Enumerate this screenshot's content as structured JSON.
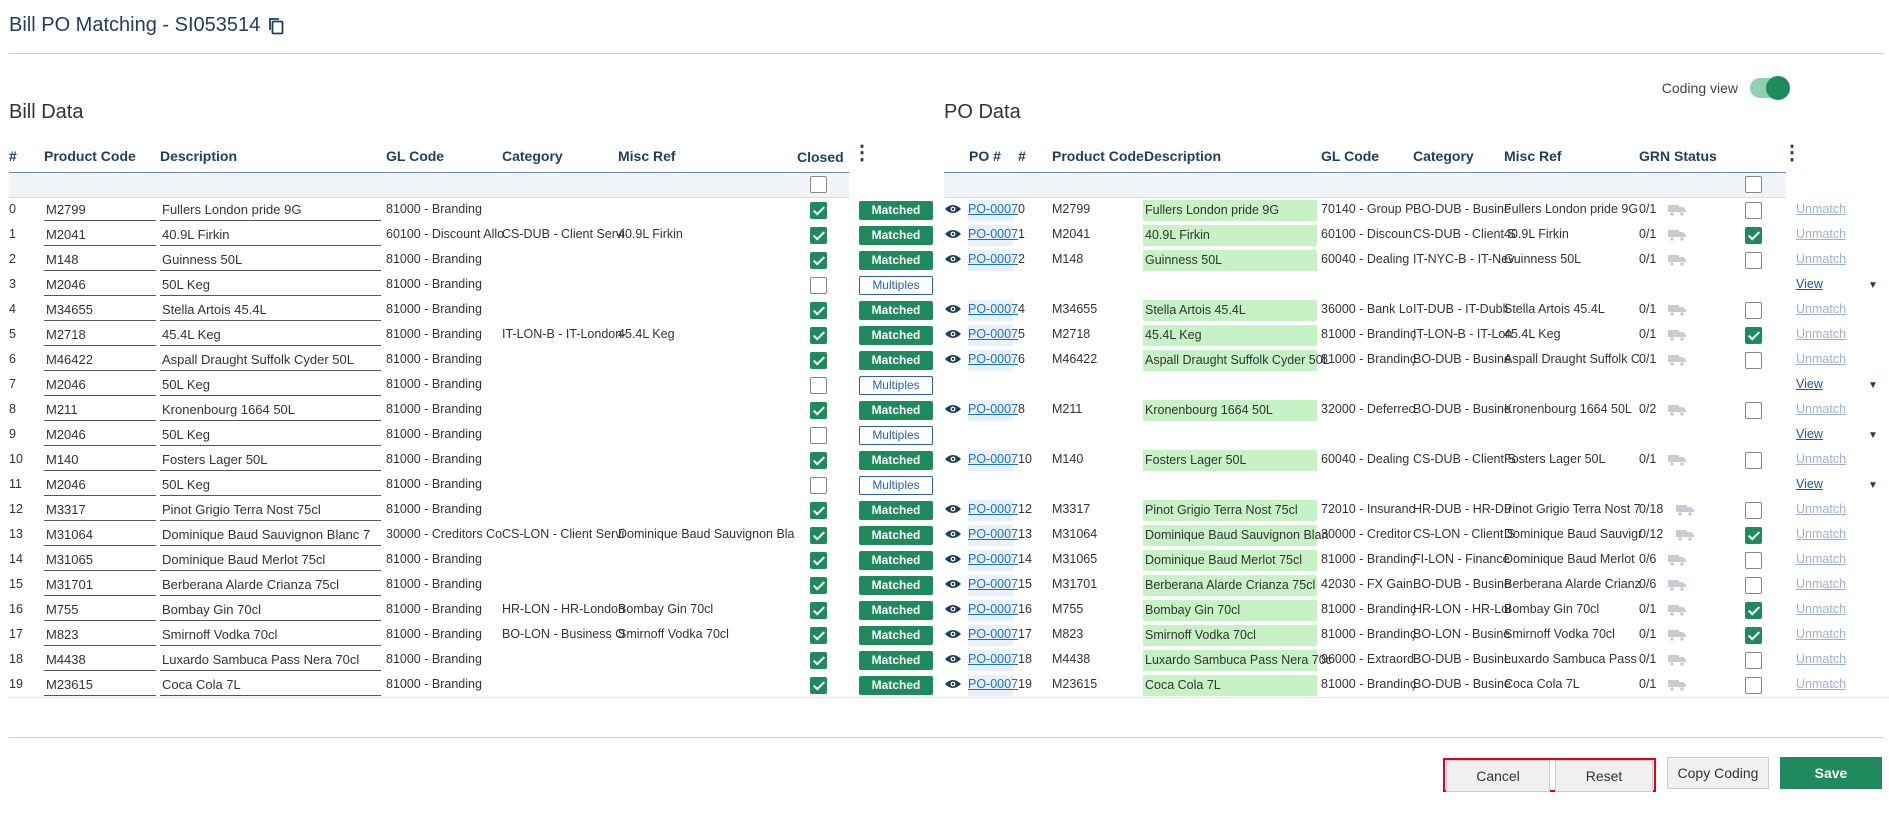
{
  "page": {
    "title": "Bill PO Matching - SI053514",
    "bill_section": "Bill Data",
    "po_section": "PO Data",
    "coding_view_label": "Coding view"
  },
  "bill_headers": {
    "num": "#",
    "product_code": "Product Code",
    "description": "Description",
    "gl_code": "GL Code",
    "category": "Category",
    "misc_ref": "Misc Ref",
    "closed": "Closed"
  },
  "po_headers": {
    "po": "PO #",
    "num": "#",
    "product_code": "Product Code",
    "description": "Description",
    "gl_code": "GL Code",
    "category": "Category",
    "misc_ref": "Misc Ref",
    "grn_status": "GRN Status"
  },
  "rows": [
    {
      "n": "0",
      "code": "M2799",
      "desc": "Fullers London pride 9G",
      "gl": "81000 - Branding",
      "cat": "",
      "misc": "",
      "closed": true,
      "status": "Matched",
      "po": "PO-0007",
      "pcode": "M2799",
      "pdesc": "Fullers London pride 9G",
      "pgl": "70140 - Group P",
      "pcat": "BO-DUB - Busine",
      "pmisc": "Fullers London pride 9G",
      "grn": "0/1",
      "pchk": false
    },
    {
      "n": "1",
      "code": "M2041",
      "desc": "40.9L Firkin",
      "gl": "60100 - Discount Allo",
      "cat": "CS-DUB - Client Servi",
      "misc": "40.9L Firkin",
      "closed": true,
      "status": "Matched",
      "po": "PO-0007",
      "pcode": "M2041",
      "pdesc": "40.9L Firkin",
      "pgl": "60100 - Discoun",
      "pcat": "CS-DUB - Client S",
      "pmisc": "40.9L Firkin",
      "grn": "0/1",
      "pchk": true
    },
    {
      "n": "2",
      "code": "M148",
      "desc": "Guinness  50L",
      "gl": "81000 - Branding",
      "cat": "",
      "misc": "",
      "closed": true,
      "status": "Matched",
      "po": "PO-0007",
      "pcode": "M148",
      "pdesc": "Guinness 50L",
      "pgl": "60040 - Dealing",
      "pcat": "IT-NYC-B - IT-Nev",
      "pmisc": "Guinness 50L",
      "grn": "0/1",
      "pchk": false
    },
    {
      "n": "3",
      "code": "M2046",
      "desc": "50L Keg",
      "gl": "81000 - Branding",
      "cat": "",
      "misc": "",
      "closed": false,
      "status": "Multiples",
      "view": "View"
    },
    {
      "n": "4",
      "code": "M34655",
      "desc": "Stella Artois  45.4L",
      "gl": "81000 - Branding",
      "cat": "",
      "misc": "",
      "closed": true,
      "status": "Matched",
      "po": "PO-0007",
      "pcode": "M34655",
      "pdesc": "Stella Artois 45.4L",
      "pgl": "36000 - Bank Lo",
      "pcat": "IT-DUB - IT-Dubli",
      "pmisc": "Stella Artois 45.4L",
      "grn": "0/1",
      "pchk": false
    },
    {
      "n": "5",
      "code": "M2718",
      "desc": "45.4L Keg",
      "gl": "81000 - Branding",
      "cat": "IT-LON-B - IT-London-",
      "misc": "45.4L Keg",
      "closed": true,
      "status": "Matched",
      "po": "PO-0007",
      "pcode": "M2718",
      "pdesc": "45.4L Keg",
      "pgl": "81000 - Brandinç",
      "pcat": "IT-LON-B - IT-Lon",
      "pmisc": "45.4L Keg",
      "grn": "0/1",
      "pchk": true
    },
    {
      "n": "6",
      "code": "M46422",
      "desc": "Aspall Draught Suffolk Cyder 50L",
      "gl": "81000 - Branding",
      "cat": "",
      "misc": "",
      "closed": true,
      "status": "Matched",
      "po": "PO-0007",
      "pcode": "M46422",
      "pdesc": "Aspall Draught Suffolk Cyder 50L",
      "pgl": "81000 - Brandinç",
      "pcat": "BO-DUB - Busine",
      "pmisc": "Aspall Draught Suffolk C",
      "grn": "0/1",
      "pchk": false
    },
    {
      "n": "7",
      "code": "M2046",
      "desc": "50L Keg",
      "gl": "81000 - Branding",
      "cat": "",
      "misc": "",
      "closed": false,
      "status": "Multiples",
      "view": "View"
    },
    {
      "n": "8",
      "code": "M211",
      "desc": "Kronenbourg 1664  50L",
      "gl": "81000 - Branding",
      "cat": "",
      "misc": "",
      "closed": true,
      "status": "Matched",
      "po": "PO-0007",
      "pcode": "M211",
      "pdesc": "Kronenbourg 1664 50L",
      "pgl": "32000 - Deferrec",
      "pcat": "BO-DUB - Busine",
      "pmisc": "Kronenbourg 1664 50L",
      "grn": "0/2",
      "pchk": false
    },
    {
      "n": "9",
      "code": "M2046",
      "desc": "50L Keg",
      "gl": "81000 - Branding",
      "cat": "",
      "misc": "",
      "closed": false,
      "status": "Multiples",
      "view": "View"
    },
    {
      "n": "10",
      "code": "M140",
      "desc": "Fosters Lager  50L",
      "gl": "81000 - Branding",
      "cat": "",
      "misc": "",
      "closed": true,
      "status": "Matched",
      "po": "PO-0007",
      "pcode": "M140",
      "pdesc": "Fosters Lager 50L",
      "pgl": "60040 - Dealing",
      "pcat": "CS-DUB - Client S",
      "pmisc": "Fosters Lager 50L",
      "grn": "0/1",
      "pchk": false
    },
    {
      "n": "11",
      "code": "M2046",
      "desc": "50L Keg",
      "gl": "81000 - Branding",
      "cat": "",
      "misc": "",
      "closed": false,
      "status": "Multiples",
      "view": "View"
    },
    {
      "n": "12",
      "code": "M3317",
      "desc": "Pinot Grigio Terra Nost  75cl",
      "gl": "81000 - Branding",
      "cat": "",
      "misc": "",
      "closed": true,
      "status": "Matched",
      "po": "PO-0007",
      "pcode": "M3317",
      "pdesc": "Pinot Grigio Terra Nost 75cl",
      "pgl": "72010 - Insuranc",
      "pcat": "HR-DUB - HR-Du",
      "pmisc": "Pinot Grigio Terra Nost 7",
      "grn": "0/18",
      "pchk": false
    },
    {
      "n": "13",
      "code": "M31064",
      "desc": "Dominique Baud Sauvignon Blanc  7",
      "gl": "30000 - Creditors Co",
      "cat": "CS-LON - Client Servi",
      "misc": "Dominique Baud Sauvignon Bla",
      "closed": true,
      "status": "Matched",
      "po": "PO-0007",
      "pcode": "M31064",
      "pdesc": "Dominique Baud Sauvignon Blan",
      "pgl": "30000 - Creditor",
      "pcat": "CS-LON - Client S",
      "pmisc": "Dominique Baud Sauvigr",
      "grn": "0/12",
      "pchk": true
    },
    {
      "n": "14",
      "code": "M31065",
      "desc": "Dominique Baud Merlot  75cl",
      "gl": "81000 - Branding",
      "cat": "",
      "misc": "",
      "closed": true,
      "status": "Matched",
      "po": "PO-0007",
      "pcode": "M31065",
      "pdesc": "Dominique Baud Merlot 75cl",
      "pgl": "81000 - Brandinç",
      "pcat": "FI-LON - Finance",
      "pmisc": "Dominique Baud Merlot",
      "grn": "0/6",
      "pchk": false
    },
    {
      "n": "15",
      "code": "M31701",
      "desc": "Berberana Alarde Crianza  75cl",
      "gl": "81000 - Branding",
      "cat": "",
      "misc": "",
      "closed": true,
      "status": "Matched",
      "po": "PO-0007",
      "pcode": "M31701",
      "pdesc": "Berberana Alarde Crianza 75cl",
      "pgl": "42030 - FX Gain:",
      "pcat": "BO-DUB - Busine",
      "pmisc": "Berberana Alarde Crianz",
      "grn": "0/6",
      "pchk": false
    },
    {
      "n": "16",
      "code": "M755",
      "desc": "Bombay Gin  70cl",
      "gl": "81000 - Branding",
      "cat": "HR-LON - HR-London",
      "misc": "Bombay Gin 70cl",
      "closed": true,
      "status": "Matched",
      "po": "PO-0007",
      "pcode": "M755",
      "pdesc": "Bombay Gin 70cl",
      "pgl": "81000 - Brandinç",
      "pcat": "HR-LON - HR-Loi",
      "pmisc": "Bombay Gin 70cl",
      "grn": "0/1",
      "pchk": true
    },
    {
      "n": "17",
      "code": "M823",
      "desc": "Smirnoff Vodka  70cl",
      "gl": "81000 - Branding",
      "cat": "BO-LON - Business O",
      "misc": "Smirnoff Vodka 70cl",
      "closed": true,
      "status": "Matched",
      "po": "PO-0007",
      "pcode": "M823",
      "pdesc": "Smirnoff Vodka 70cl",
      "pgl": "81000 - Brandinç",
      "pcat": "BO-LON - Busine",
      "pmisc": "Smirnoff Vodka 70cl",
      "grn": "0/1",
      "pchk": true
    },
    {
      "n": "18",
      "code": "M4438",
      "desc": "Luxardo Sambuca Pass Nera  70cl",
      "gl": "81000 - Branding",
      "cat": "",
      "misc": "",
      "closed": true,
      "status": "Matched",
      "po": "PO-0007",
      "pcode": "M4438",
      "pdesc": "Luxardo Sambuca Pass Nera 70c",
      "pgl": "96000 - Extraord",
      "pcat": "BO-DUB - Busine",
      "pmisc": "Luxardo Sambuca Pass",
      "grn": "0/1",
      "pchk": false
    },
    {
      "n": "19",
      "code": "M23615",
      "desc": "Coca Cola  7L",
      "gl": "81000 - Branding",
      "cat": "",
      "misc": "",
      "closed": true,
      "status": "Matched",
      "po": "PO-0007",
      "pcode": "M23615",
      "pdesc": "Coca Cola 7L",
      "pgl": "81000 - Brandinç",
      "pcat": "BO-DUB - Busine",
      "pmisc": "Coca Cola 7L",
      "grn": "0/1",
      "pchk": false
    }
  ],
  "unmatch_label": "Unmatch",
  "buttons": {
    "cancel": "Cancel",
    "reset": "Reset",
    "copy_coding": "Copy Coding",
    "save": "Save"
  }
}
